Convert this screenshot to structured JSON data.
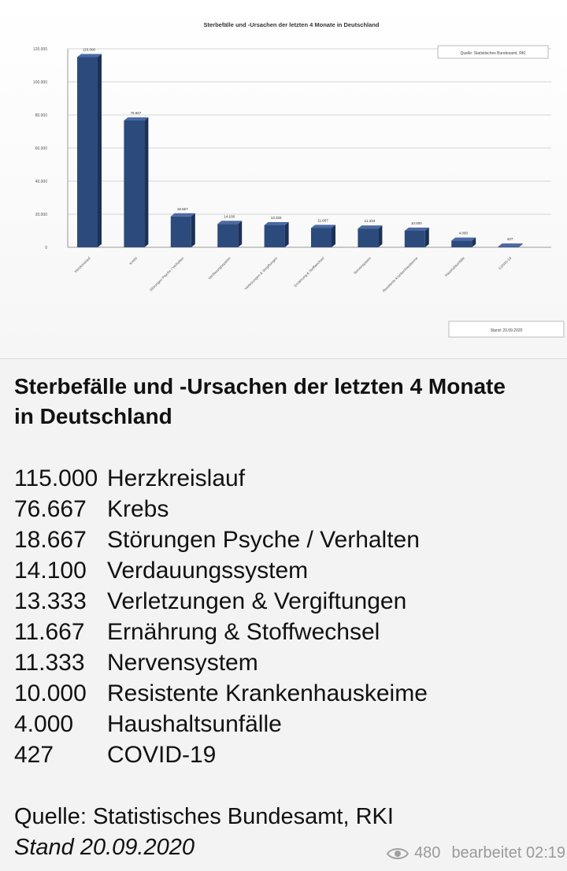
{
  "chart_data": {
    "type": "bar",
    "title": "Sterbefälle und -Ursachen der letzten 4 Monate in Deutschland",
    "categories": [
      "Herzkreislauf",
      "Krebs",
      "Störungen Psyche / Verhalten",
      "Verdauungssystem",
      "Verletzungen & Vergiftungen",
      "Ernährung & Stoffwechsel",
      "Nervensystem",
      "Resistente Krankenhauskeime",
      "Haushaltsunfälle",
      "COVID-19"
    ],
    "values": [
      115000,
      76667,
      18667,
      14100,
      13333,
      11667,
      11333,
      10000,
      4000,
      427
    ],
    "value_labels": [
      "115.000",
      "76.667",
      "18.667",
      "14.100",
      "13.333",
      "11.667",
      "11.333",
      "10.000",
      "4.000",
      "427"
    ],
    "yticks": [
      "0",
      "20.000",
      "40.000",
      "60.000",
      "80.000",
      "100.000",
      "120.000"
    ],
    "ylim": [
      0,
      120000
    ],
    "grid": true,
    "legend_text": "Quelle: Statistisches Bundesamt, RKI",
    "stand_box_text": "Stand: 20.09.2020",
    "bar_color": "#2d4a7c"
  },
  "caption": {
    "title": "Sterbefälle und -Ursachen der letzten 4 Monate in Deutschland",
    "rows": [
      {
        "num": "115.000",
        "label": "Herzkreislauf"
      },
      {
        "num": "76.667",
        "label": "Krebs"
      },
      {
        "num": "18.667",
        "label": "Störungen Psyche / Verhalten"
      },
      {
        "num": "14.100",
        "label": "Verdauungssystem"
      },
      {
        "num": "13.333",
        "label": "Verletzungen & Vergiftungen"
      },
      {
        "num": "11.667",
        "label": "Ernährung & Stoffwechsel"
      },
      {
        "num": "11.333",
        "label": "Nervensystem"
      },
      {
        "num": "10.000",
        "label": "Resistente Krankenhauskeime"
      },
      {
        "num": "4.000",
        "label": "Haushaltsunfälle"
      },
      {
        "num": "427",
        "label": "COVID-19"
      }
    ],
    "source": "Quelle: Statistisches Bundesamt, RKI",
    "stand": "Stand 20.09.2020"
  },
  "meta": {
    "icon": "eye-icon",
    "views": "480",
    "edited": "bearbeitet 02:19"
  }
}
